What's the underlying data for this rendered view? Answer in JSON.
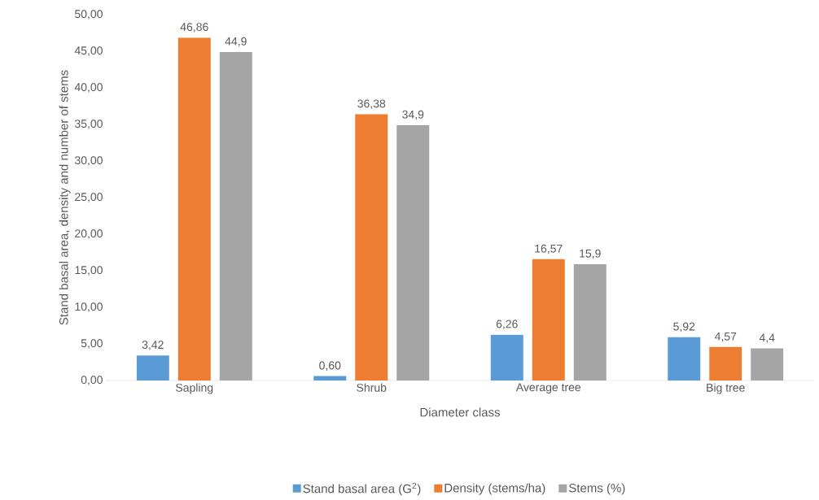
{
  "chart_data": {
    "type": "bar",
    "xlabel": "Diameter class",
    "ylabel": "Stand basal area, density and number of stems",
    "categories": [
      "Sapling",
      "Shrub",
      "Average tree",
      "Big tree"
    ],
    "series": [
      {
        "name": "Stand basal area (G$^{2}$)",
        "color": "#5b9bd5",
        "values": [
          3.42,
          0.6,
          6.26,
          5.92
        ],
        "value_labels": [
          "3,42",
          "0,60",
          "6,26",
          "5,92"
        ]
      },
      {
        "name": "Density (stems/ha)",
        "color": "#ed7d31",
        "values": [
          46.86,
          36.38,
          16.57,
          4.57
        ],
        "value_labels": [
          "46,86",
          "36,38",
          "16,57",
          "4,57"
        ]
      },
      {
        "name": "Stems (%)",
        "color": "#a5a5a5",
        "values": [
          44.9,
          34.9,
          15.9,
          4.4
        ],
        "value_labels": [
          "44,9",
          "34,9",
          "15,9",
          "4,4"
        ]
      }
    ],
    "ylim": [
      0,
      50
    ],
    "yticks": [
      {
        "value": 0,
        "label": "0,00"
      },
      {
        "value": 5,
        "label": "5,00"
      },
      {
        "value": 10,
        "label": "10,00"
      },
      {
        "value": 15,
        "label": "15,00"
      },
      {
        "value": 20,
        "label": "20,00"
      },
      {
        "value": 25,
        "label": "25,00"
      },
      {
        "value": 30,
        "label": "30,00"
      },
      {
        "value": 35,
        "label": "35,00"
      },
      {
        "value": 40,
        "label": "40,00"
      },
      {
        "value": 45,
        "label": "45,00"
      },
      {
        "value": 50,
        "label": "50,00"
      }
    ],
    "grid": false,
    "legend": "bottom"
  }
}
